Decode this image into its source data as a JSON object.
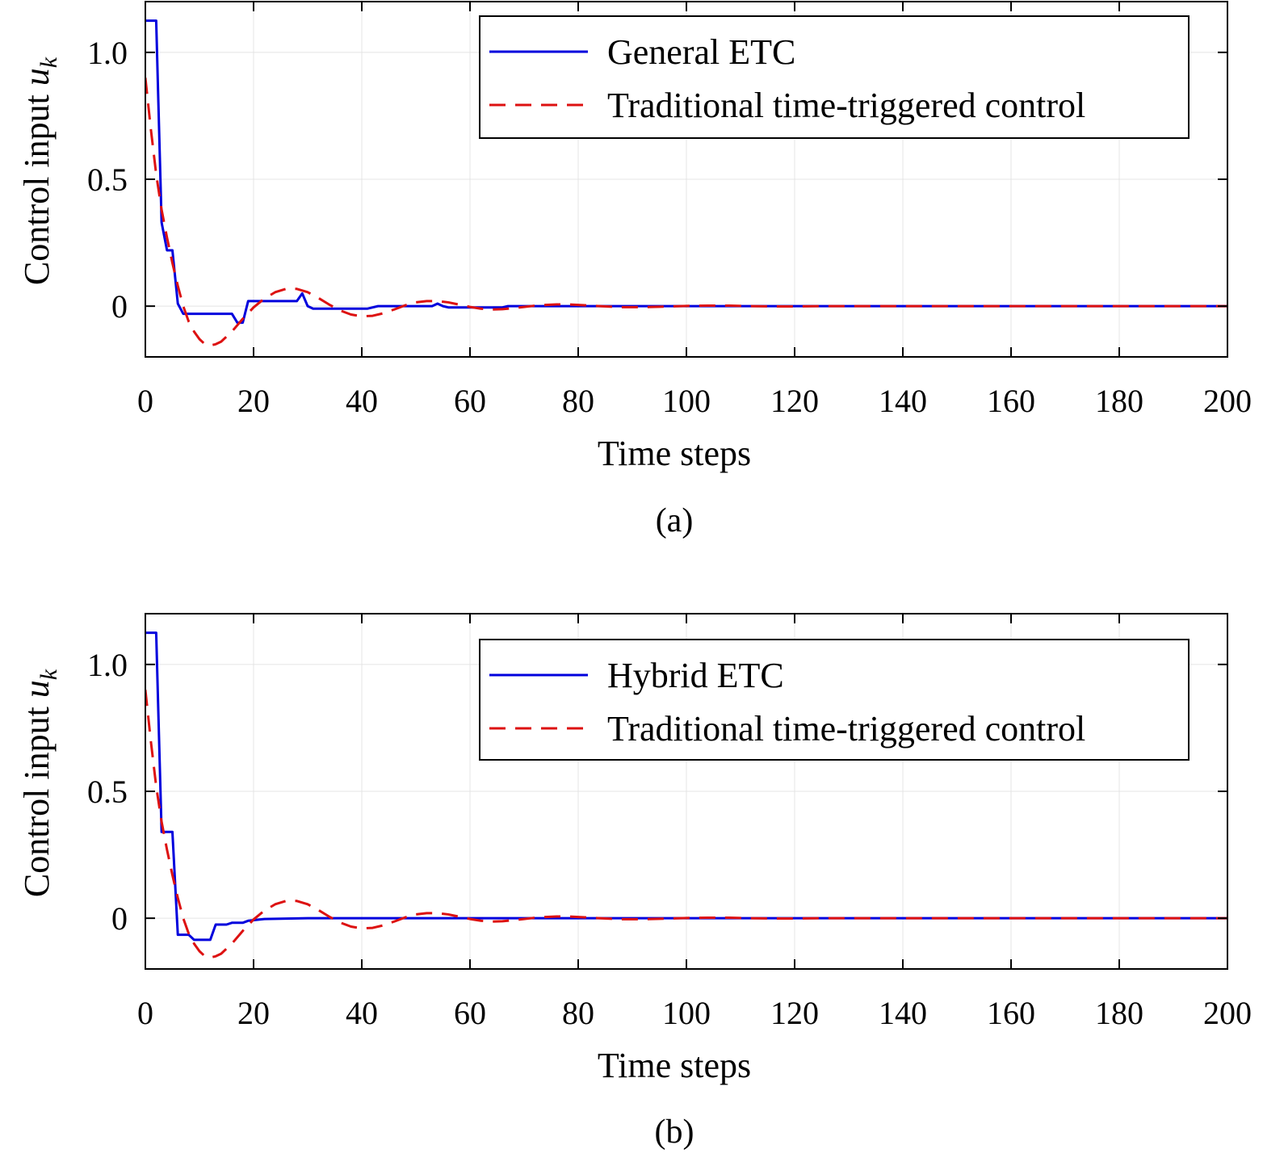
{
  "chart_data": [
    {
      "type": "line",
      "caption": "(a)",
      "xlabel": "Time steps",
      "ylabel": "Control input u",
      "ylabel_subscript": "k",
      "xlim": [
        0,
        200
      ],
      "ylim": [
        -0.2,
        1.2
      ],
      "xticks": [
        0,
        20,
        40,
        60,
        80,
        100,
        120,
        140,
        160,
        180,
        200
      ],
      "xtick_labels": [
        "0",
        "20",
        "40",
        "60",
        "80",
        "100",
        "120",
        "140",
        "160",
        "180",
        "200"
      ],
      "yticks": [
        0,
        0.5,
        1.0
      ],
      "ytick_labels": [
        "0",
        "0.5",
        "1.0"
      ],
      "grid": true,
      "legend_position": "top-right",
      "series": [
        {
          "name": "General ETC",
          "color": "#0000dd",
          "style": "solid",
          "x": [
            0,
            2,
            3,
            4,
            5,
            6,
            7,
            8,
            16,
            17,
            18,
            19,
            28,
            29,
            30,
            31,
            41,
            43,
            53,
            54,
            55,
            56,
            66,
            67,
            80,
            200
          ],
          "y": [
            1.125,
            1.125,
            0.33,
            0.22,
            0.22,
            0.01,
            -0.03,
            -0.03,
            -0.03,
            -0.065,
            -0.065,
            0.02,
            0.02,
            0.05,
            0.0,
            -0.01,
            -0.01,
            0.0,
            0.0,
            0.01,
            0.0,
            -0.005,
            -0.005,
            0.0,
            0.0,
            0.0
          ]
        },
        {
          "name": "Traditional time-triggered control",
          "color": "#dd1111",
          "style": "dashed",
          "x": [
            0,
            1,
            2,
            3,
            4,
            5,
            6,
            7,
            8,
            9,
            10,
            11,
            12,
            13,
            14,
            16,
            18,
            20,
            22,
            24,
            26,
            28,
            30,
            32,
            34,
            36,
            38,
            40,
            42,
            44,
            46,
            48,
            50,
            52,
            54,
            56,
            58,
            60,
            62,
            64,
            66,
            68,
            70,
            72,
            74,
            76,
            78,
            80,
            84,
            88,
            92,
            96,
            100,
            104,
            108,
            112,
            116,
            120,
            125,
            130,
            140,
            150,
            160,
            180,
            200
          ],
          "y": [
            0.9,
            0.7,
            0.52,
            0.38,
            0.27,
            0.17,
            0.08,
            0.0,
            -0.06,
            -0.1,
            -0.13,
            -0.15,
            -0.155,
            -0.15,
            -0.14,
            -0.1,
            -0.05,
            -0.005,
            0.03,
            0.055,
            0.068,
            0.068,
            0.055,
            0.032,
            0.006,
            -0.017,
            -0.033,
            -0.04,
            -0.038,
            -0.028,
            -0.013,
            0.003,
            0.015,
            0.02,
            0.02,
            0.015,
            0.006,
            -0.003,
            -0.01,
            -0.013,
            -0.012,
            -0.008,
            -0.003,
            0.002,
            0.005,
            0.007,
            0.007,
            0.005,
            0.0,
            -0.004,
            -0.004,
            -0.002,
            0.001,
            0.002,
            0.002,
            0.0,
            -0.001,
            -0.001,
            0.0,
            0.0,
            0.0,
            0.0,
            0.0,
            0.0,
            0.0
          ]
        }
      ]
    },
    {
      "type": "line",
      "caption": "(b)",
      "xlabel": "Time steps",
      "ylabel": "Control input u",
      "ylabel_subscript": "k",
      "xlim": [
        0,
        200
      ],
      "ylim": [
        -0.2,
        1.2
      ],
      "xticks": [
        0,
        20,
        40,
        60,
        80,
        100,
        120,
        140,
        160,
        180,
        200
      ],
      "xtick_labels": [
        "0",
        "20",
        "40",
        "60",
        "80",
        "100",
        "120",
        "140",
        "160",
        "180",
        "200"
      ],
      "yticks": [
        0,
        0.5,
        1.0
      ],
      "ytick_labels": [
        "0",
        "0.5",
        "1.0"
      ],
      "grid": true,
      "legend_position": "top-right",
      "series": [
        {
          "name": "Hybrid ETC",
          "color": "#0000dd",
          "style": "solid",
          "x": [
            0,
            2,
            3,
            4,
            5,
            6,
            8,
            9,
            12,
            13,
            15,
            16,
            18,
            19,
            22,
            30,
            200
          ],
          "y": [
            1.125,
            1.125,
            0.34,
            0.34,
            0.34,
            -0.065,
            -0.065,
            -0.085,
            -0.085,
            -0.025,
            -0.025,
            -0.018,
            -0.018,
            -0.01,
            -0.003,
            0.0,
            0.0
          ]
        },
        {
          "name": "Traditional time-triggered control",
          "color": "#dd1111",
          "style": "dashed",
          "x": [
            0,
            1,
            2,
            3,
            4,
            5,
            6,
            7,
            8,
            9,
            10,
            11,
            12,
            13,
            14,
            16,
            18,
            20,
            22,
            24,
            26,
            28,
            30,
            32,
            34,
            36,
            38,
            40,
            42,
            44,
            46,
            48,
            50,
            52,
            54,
            56,
            58,
            60,
            62,
            64,
            66,
            68,
            70,
            72,
            74,
            76,
            78,
            80,
            84,
            88,
            92,
            96,
            100,
            104,
            108,
            112,
            116,
            120,
            125,
            130,
            140,
            150,
            160,
            180,
            200
          ],
          "y": [
            0.9,
            0.7,
            0.52,
            0.38,
            0.27,
            0.17,
            0.08,
            0.0,
            -0.06,
            -0.1,
            -0.13,
            -0.15,
            -0.155,
            -0.15,
            -0.14,
            -0.1,
            -0.05,
            -0.005,
            0.03,
            0.055,
            0.068,
            0.068,
            0.055,
            0.032,
            0.006,
            -0.017,
            -0.033,
            -0.04,
            -0.038,
            -0.028,
            -0.013,
            0.003,
            0.015,
            0.02,
            0.02,
            0.015,
            0.006,
            -0.003,
            -0.01,
            -0.013,
            -0.012,
            -0.008,
            -0.003,
            0.002,
            0.005,
            0.007,
            0.007,
            0.005,
            0.0,
            -0.004,
            -0.004,
            -0.002,
            0.001,
            0.002,
            0.002,
            0.0,
            -0.001,
            -0.001,
            0.0,
            0.0,
            0.0,
            0.0,
            0.0,
            0.0,
            0.0
          ]
        }
      ]
    }
  ]
}
